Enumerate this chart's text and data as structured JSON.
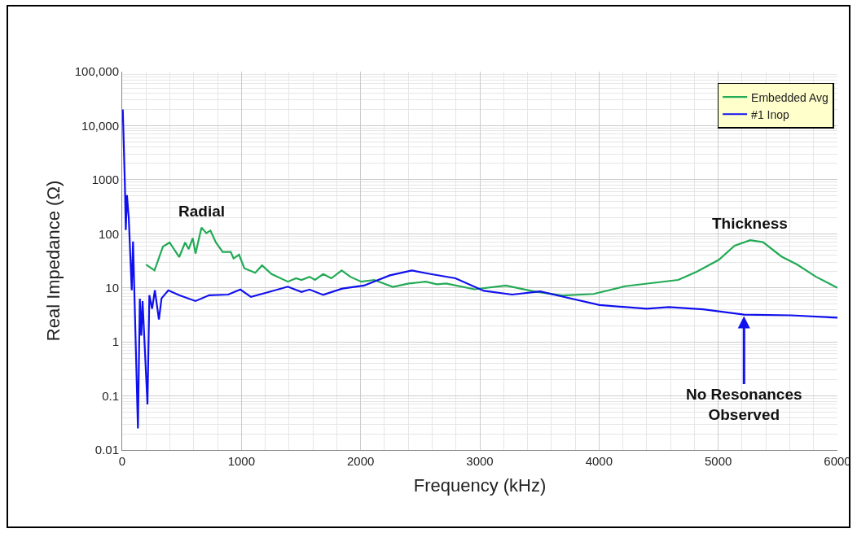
{
  "chart_data": {
    "type": "line",
    "xlabel": "Frequency (kHz)",
    "ylabel": "Real Impedance (Ω)",
    "xlim": [
      0,
      6000
    ],
    "xticks": [
      0,
      1000,
      2000,
      3000,
      4000,
      5000,
      6000
    ],
    "ylim": [
      0.01,
      100000
    ],
    "yticks": [
      0.01,
      0.1,
      1,
      10,
      100,
      1000,
      {
        "value": 10000,
        "label": "10,000"
      },
      {
        "value": 100000,
        "label": "100,000"
      }
    ],
    "log": "y",
    "grid": true,
    "legend": "top right",
    "line_style": "solid",
    "marker": "none",
    "annotations": [
      {
        "text": "Radial",
        "x": 665,
        "y": 130
      },
      {
        "text": "Thickness",
        "x": 5268,
        "y": 76
      },
      {
        "text": "No Resonances\nObserved",
        "x": 5216,
        "y": 3.2
      }
    ],
    "series": [
      {
        "name": "Embedded Avg",
        "color": "#22aa55",
        "x": [
          200,
          271,
          342,
          398,
          478,
          528,
          558,
          592,
          615,
          665,
          706,
          740,
          786,
          843,
          911,
          934,
          980,
          1025,
          1116,
          1173,
          1253,
          1390,
          1458,
          1504,
          1572,
          1617,
          1686,
          1754,
          1841,
          1914,
          2005,
          2114,
          2271,
          2403,
          2547,
          2639,
          2718,
          2955,
          3218,
          3454,
          3691,
          3954,
          4217,
          4664,
          4822,
          5005,
          5137,
          5268,
          5376,
          5530,
          5661,
          5820,
          6000
        ],
        "values": [
          27,
          21,
          58,
          69,
          37,
          69,
          52,
          83,
          43,
          130,
          103,
          115,
          69,
          46,
          46,
          35,
          41,
          23,
          19,
          26,
          18,
          13,
          15,
          14,
          16,
          14,
          18,
          15,
          21,
          16,
          13,
          14,
          10.4,
          12,
          13,
          11.6,
          12,
          9.4,
          11,
          8.6,
          7.2,
          7.7,
          10.7,
          14,
          20,
          33,
          60,
          76,
          70,
          38,
          27,
          16,
          10
        ]
      },
      {
        "name": "#1 Inop",
        "color": "#1010ee",
        "x": [
          5,
          23,
          30,
          40,
          55,
          80,
          91,
          132,
          148,
          160,
          171,
          212,
          228,
          251,
          274,
          308,
          330,
          387,
          478,
          615,
          729,
          889,
          991,
          1080,
          1208,
          1389,
          1504,
          1572,
          1686,
          1846,
          2028,
          2245,
          2429,
          2587,
          2796,
          3034,
          3271,
          3507,
          3717,
          4005,
          4400,
          4585,
          4874,
          5216,
          5610,
          6000
        ],
        "values": [
          20000,
          740,
          117,
          520,
          200,
          9,
          72,
          0.025,
          6.3,
          1.3,
          5.7,
          0.07,
          7.3,
          4.1,
          9,
          2.6,
          6.4,
          9,
          7.3,
          5.7,
          7.3,
          7.5,
          9.3,
          6.8,
          8.1,
          10.5,
          8.4,
          9.3,
          7.4,
          9.7,
          11,
          17,
          21,
          18,
          15,
          8.8,
          7.5,
          8.6,
          6.7,
          4.8,
          4.1,
          4.4,
          4,
          3.2,
          3.1,
          2.8
        ]
      }
    ]
  }
}
